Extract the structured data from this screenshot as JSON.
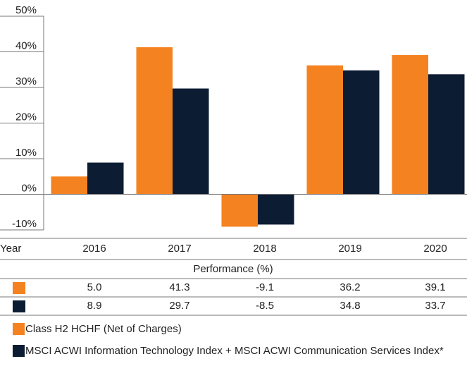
{
  "chart_data": {
    "type": "bar",
    "x_label": "Year",
    "categories": [
      "2016",
      "2017",
      "2018",
      "2019",
      "2020"
    ],
    "series": [
      {
        "name": "Class H2 HCHF (Net of Charges)",
        "color": "#f58220",
        "values": [
          5.0,
          41.3,
          -9.1,
          36.2,
          39.1
        ],
        "value_labels": [
          "5.0",
          "41.3",
          "-9.1",
          "36.2",
          "39.1"
        ]
      },
      {
        "name": "MSCI ACWI Information Technology Index + MSCI ACWI Communication Services Index*",
        "color": "#0b1c33",
        "values": [
          8.9,
          29.7,
          -8.5,
          34.8,
          33.7
        ],
        "value_labels": [
          "8.9",
          "29.7",
          "-8.5",
          "34.8",
          "33.7"
        ]
      }
    ],
    "table_header": "Performance (%)",
    "ylim": [
      -10,
      50
    ],
    "yticks": [
      {
        "value": -10,
        "label": "-10%"
      },
      {
        "value": 0,
        "label": "0%"
      },
      {
        "value": 10,
        "label": "10%"
      },
      {
        "value": 20,
        "label": "20%"
      },
      {
        "value": 30,
        "label": "30%"
      },
      {
        "value": 40,
        "label": "40%"
      },
      {
        "value": 50,
        "label": "50%"
      }
    ]
  }
}
